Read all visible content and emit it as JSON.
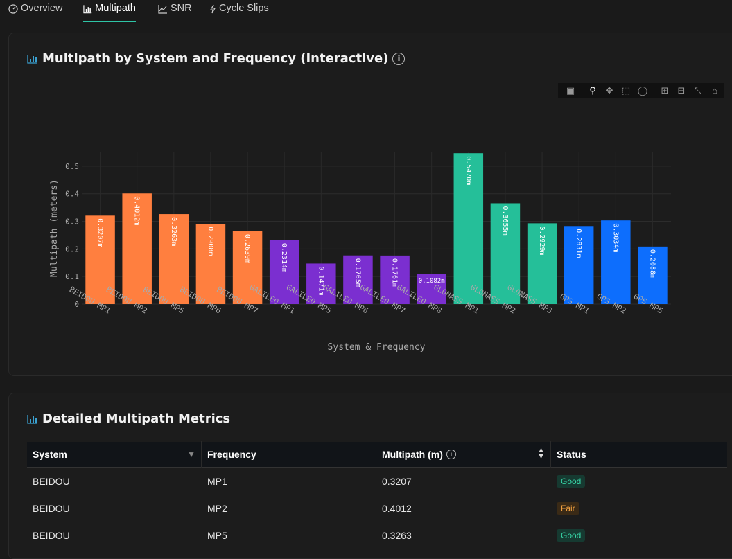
{
  "tabs": [
    {
      "label": "Overview",
      "icon": "gauge-icon"
    },
    {
      "label": "Multipath",
      "icon": "bar-chart-icon",
      "active": true
    },
    {
      "label": "SNR",
      "icon": "line-chart-icon"
    },
    {
      "label": "Cycle Slips",
      "icon": "lightning-icon"
    }
  ],
  "chart_card": {
    "title": "Multipath by System and Frequency (Interactive)"
  },
  "table_card": {
    "title": "Detailed Multipath Metrics"
  },
  "colors": {
    "BEIDOU": "#ff7f3f",
    "GALILEO": "#7b2fd0",
    "GLONASS": "#25bf99",
    "GPS": "#0d6efd",
    "accent": "#2ec4a6"
  },
  "chart_data": {
    "type": "bar",
    "xlabel": "System & Frequency",
    "ylabel": "Multipath (meters)",
    "ylim": [
      0,
      0.55
    ],
    "yticks": [
      "0",
      "0.1",
      "0.2",
      "0.3",
      "0.4",
      "0.5"
    ],
    "grid": true,
    "categories": [
      "BEIDOU MP1",
      "BEIDOU MP2",
      "BEIDOU MP5",
      "BEIDOU MP6",
      "BEIDOU MP7",
      "GALILEO MP1",
      "GALILEO MP5",
      "GALILEO MP6",
      "GALILEO MP7",
      "GALILEO MP8",
      "GLONASS MP1",
      "GLONASS MP2",
      "GLONASS MP3",
      "GPS MP1",
      "GPS MP2",
      "GPS MP5"
    ],
    "systems": [
      "BEIDOU",
      "BEIDOU",
      "BEIDOU",
      "BEIDOU",
      "BEIDOU",
      "GALILEO",
      "GALILEO",
      "GALILEO",
      "GALILEO",
      "GALILEO",
      "GLONASS",
      "GLONASS",
      "GLONASS",
      "GPS",
      "GPS",
      "GPS"
    ],
    "values": [
      0.3207,
      0.4012,
      0.3263,
      0.2908,
      0.2639,
      0.2314,
      0.1471,
      0.1765,
      0.1761,
      0.1082,
      0.547,
      0.3655,
      0.2929,
      0.2831,
      0.3034,
      0.2088
    ],
    "labels": [
      "0.3207m",
      "0.4012m",
      "0.3263m",
      "0.2908m",
      "0.2639m",
      "0.2314m",
      "0.1471m",
      "0.1765m",
      "0.1761m",
      "0.1082m",
      "0.5470m",
      "0.3655m",
      "0.2929m",
      "0.2831m",
      "0.3034m",
      "0.2088m"
    ]
  },
  "table": {
    "headers": {
      "system": "System",
      "frequency": "Frequency",
      "multipath": "Multipath (m)",
      "status": "Status"
    },
    "rows": [
      {
        "system": "BEIDOU",
        "frequency": "MP1",
        "multipath": "0.3207",
        "status": "Good",
        "status_class": "good"
      },
      {
        "system": "BEIDOU",
        "frequency": "MP2",
        "multipath": "0.4012",
        "status": "Fair",
        "status_class": "fair"
      },
      {
        "system": "BEIDOU",
        "frequency": "MP5",
        "multipath": "0.3263",
        "status": "Good",
        "status_class": "good"
      }
    ]
  }
}
